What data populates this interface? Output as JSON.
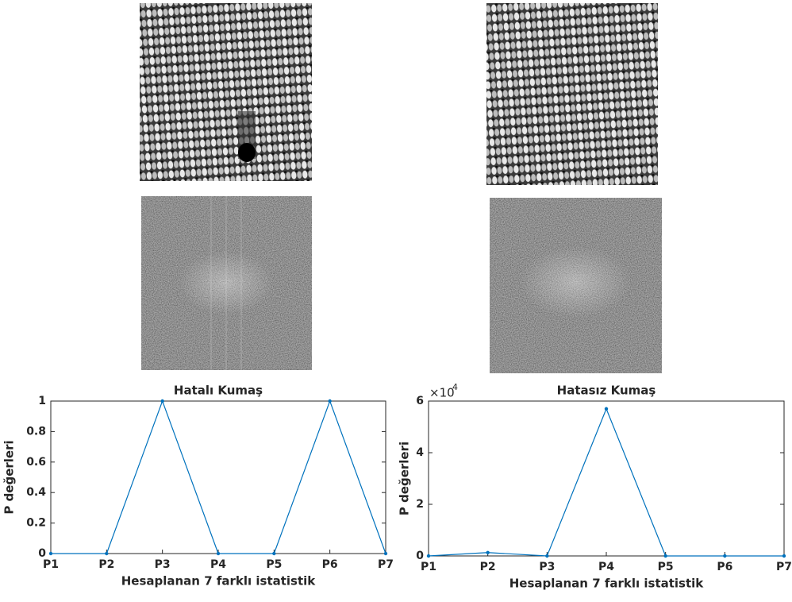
{
  "chart_data": [
    {
      "type": "line",
      "title": "Hatalı Kumaş",
      "x_label": "Hesaplanan 7 farklı istatistik",
      "y_label": "P değerleri",
      "categories": [
        "P1",
        "P2",
        "P3",
        "P4",
        "P5",
        "P6",
        "P7"
      ],
      "series": [
        {
          "color": "#0072bd",
          "values": [
            0,
            0,
            1,
            0,
            0,
            1,
            0
          ]
        }
      ],
      "ylim": [
        0,
        1
      ],
      "yticks": [
        0,
        0.2,
        0.4,
        0.6,
        0.8,
        1
      ]
    },
    {
      "type": "line",
      "title": "Hatasız Kumaş",
      "x_label": "Hesaplanan 7 farklı istatistik",
      "y_label": "P değerleri",
      "scale_label": "×10",
      "scale_power": "4",
      "categories": [
        "P1",
        "P2",
        "P3",
        "P4",
        "P5",
        "P6",
        "P7"
      ],
      "series": [
        {
          "color": "#0072bd",
          "values": [
            0,
            0.13,
            0,
            5.7,
            0,
            0,
            0
          ]
        }
      ],
      "ylim": [
        0,
        6
      ],
      "yticks": [
        0,
        2,
        4,
        6
      ]
    }
  ]
}
